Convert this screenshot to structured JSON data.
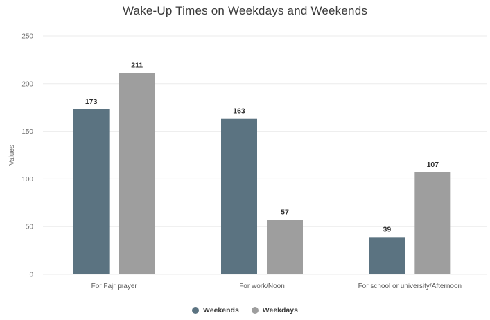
{
  "chart_data": {
    "type": "bar",
    "title": "Wake-Up Times on Weekdays and Weekends",
    "xlabel": "",
    "ylabel": "Values",
    "ylim": [
      0,
      250
    ],
    "yticks": [
      0,
      50,
      100,
      150,
      200,
      250
    ],
    "categories": [
      "For Fajr prayer",
      "For work/Noon",
      "For school or university/Afternoon"
    ],
    "series": [
      {
        "name": "Weekends",
        "color": "#5b7381",
        "values": [
          173,
          163,
          39
        ]
      },
      {
        "name": "Weekdays",
        "color": "#9e9e9e",
        "values": [
          211,
          57,
          107
        ]
      }
    ],
    "grid": true,
    "legend_position": "bottom"
  }
}
